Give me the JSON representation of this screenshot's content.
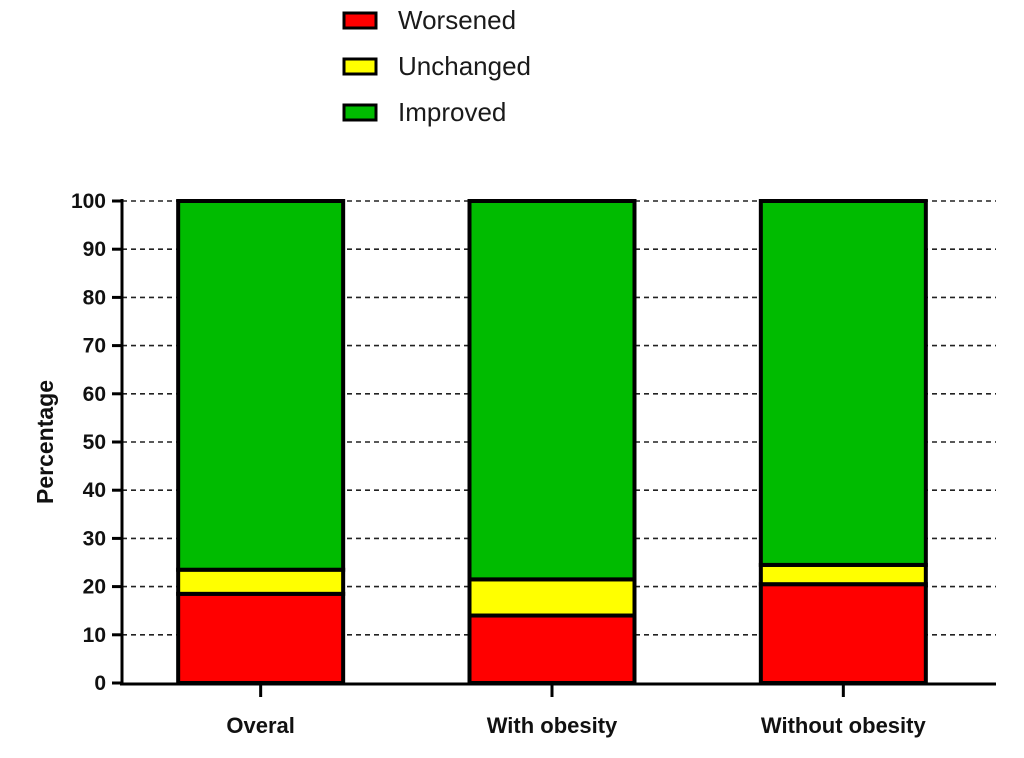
{
  "chart_data": {
    "type": "bar",
    "stacked": true,
    "categories": [
      "Overal",
      "With obesity",
      "Without obesity"
    ],
    "series": [
      {
        "name": "Worsened",
        "color": "#ff0000",
        "values": [
          18.5,
          14,
          20.5
        ]
      },
      {
        "name": "Unchanged",
        "color": "#ffff00",
        "values": [
          5,
          7.5,
          4
        ]
      },
      {
        "name": "Improved",
        "color": "#00bb00",
        "values": [
          76.5,
          78.5,
          75.5
        ]
      }
    ],
    "legend_order": [
      "Worsened",
      "Unchanged",
      "Improved"
    ],
    "legend_position": "top-center",
    "title": "",
    "xlabel": "",
    "ylabel": "Percentage",
    "ylim": [
      0,
      100
    ],
    "yticks": [
      0,
      10,
      20,
      30,
      40,
      50,
      60,
      70,
      80,
      90,
      100
    ],
    "grid": "horizontal-dashed"
  }
}
